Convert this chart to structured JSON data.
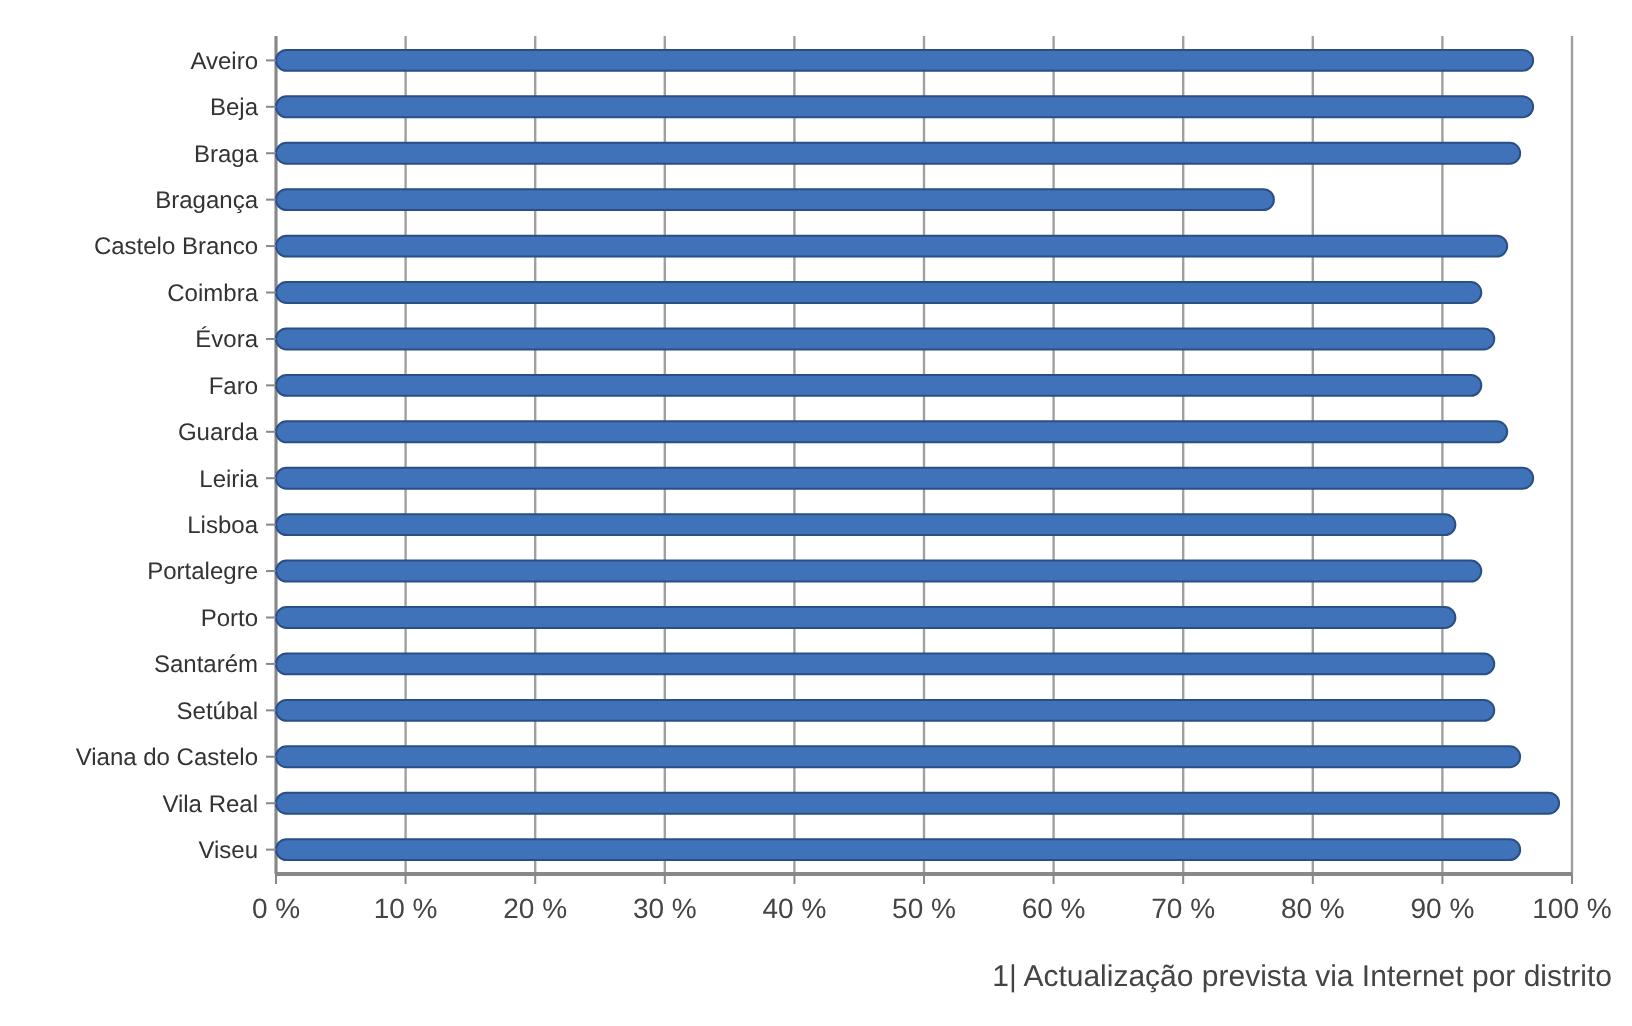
{
  "chart_data": {
    "type": "bar",
    "orientation": "horizontal",
    "categories": [
      "Aveiro",
      "Beja",
      "Braga",
      "Bragança",
      "Castelo Branco",
      "Coimbra",
      "Évora",
      "Faro",
      "Guarda",
      "Leiria",
      "Lisboa",
      "Portalegre",
      "Porto",
      "Santarém",
      "Setúbal",
      "Viana do Castelo",
      "Vila Real",
      "Viseu"
    ],
    "values": [
      97,
      97,
      96,
      77,
      95,
      93,
      94,
      93,
      95,
      97,
      91,
      93,
      91,
      94,
      94,
      96,
      99,
      96
    ],
    "color": "#3f72b8",
    "xlim": [
      0,
      100
    ],
    "xticks": [
      {
        "value": 0,
        "label": "0 %"
      },
      {
        "value": 10,
        "label": "10 %"
      },
      {
        "value": 20,
        "label": "20 %"
      },
      {
        "value": 30,
        "label": "30 %"
      },
      {
        "value": 40,
        "label": "40 %"
      },
      {
        "value": 50,
        "label": "50 %"
      },
      {
        "value": 60,
        "label": "60 %"
      },
      {
        "value": 70,
        "label": "70 %"
      },
      {
        "value": 80,
        "label": "80 %"
      },
      {
        "value": 90,
        "label": "90 %"
      },
      {
        "value": 100,
        "label": "100 %"
      }
    ],
    "grid": "x",
    "annotations": [
      "1| Actualização prevista via Internet por distrito"
    ]
  }
}
